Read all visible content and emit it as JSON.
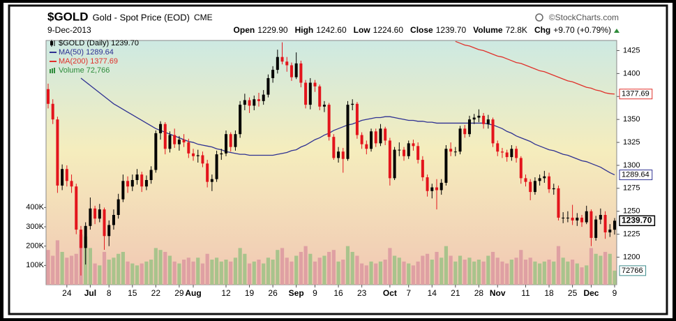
{
  "chart_data": {
    "type": "candlestick",
    "title": "$GOLD",
    "subtitle": "Gold - Spot Price (EOD)",
    "exchange": "CME",
    "source": "©StockCharts.com",
    "date": "9-Dec-2013",
    "quote": [
      {
        "label": "Open",
        "value": "1229.90"
      },
      {
        "label": "High",
        "value": "1242.60"
      },
      {
        "label": "Low",
        "value": "1224.60"
      },
      {
        "label": "Close",
        "value": "1239.70"
      },
      {
        "label": "Volume",
        "value": "72.8K"
      },
      {
        "label": "Chg",
        "value": "+9.70 (+0.79%)"
      }
    ],
    "legend": "top-left",
    "categories": [
      null,
      null,
      null,
      null,
      "24",
      null,
      null,
      null,
      null,
      "Jul",
      null,
      null,
      null,
      "8",
      null,
      null,
      null,
      null,
      "15",
      null,
      null,
      null,
      null,
      "22",
      null,
      null,
      null,
      null,
      "29",
      null,
      null,
      "Aug",
      null,
      null,
      null,
      null,
      null,
      null,
      "12",
      null,
      null,
      null,
      null,
      "19",
      null,
      null,
      null,
      null,
      "26",
      null,
      null,
      null,
      null,
      "Sep",
      null,
      null,
      null,
      "9",
      null,
      null,
      null,
      null,
      "16",
      null,
      null,
      null,
      null,
      "23",
      null,
      null,
      null,
      null,
      null,
      "Oct",
      null,
      null,
      null,
      "7",
      null,
      null,
      null,
      null,
      "14",
      null,
      null,
      null,
      null,
      "21",
      null,
      null,
      null,
      null,
      "28",
      null,
      null,
      null,
      "Nov",
      null,
      null,
      null,
      null,
      null,
      "11",
      null,
      null,
      null,
      null,
      "18",
      null,
      null,
      null,
      null,
      "25",
      null,
      null,
      null,
      "Dec",
      null,
      null,
      null,
      null,
      "9"
    ],
    "ylim": [
      1170,
      1436
    ],
    "yticks": [
      1200,
      1225,
      1250,
      1275,
      1300,
      1325,
      1350,
      1375,
      1400,
      1425
    ],
    "y2lim": [
      0,
      1265000
    ],
    "y2ticks": [
      {
        "value": 100000,
        "label": "100K"
      },
      {
        "value": 200000,
        "label": "200K"
      },
      {
        "value": 300000,
        "label": "300K"
      },
      {
        "value": 400000,
        "label": "400K"
      }
    ],
    "series": [
      {
        "name": "$GOLD (Daily) 1239.70",
        "type": "candlestick",
        "up_color": "#000000",
        "down_color": "#e3141c",
        "last_label": "1239.70",
        "open": [
          1383,
          1367,
          1350,
          1278,
          1296,
          1283,
          1277,
          1230,
          1210,
          1234,
          1253,
          1242,
          1252,
          1223,
          1235,
          1246,
          1263,
          1283,
          1277,
          1284,
          1290,
          1277,
          1284,
          1295,
          1335,
          1345,
          1318,
          1333,
          1323,
          1328,
          1325,
          1313,
          1310,
          1311,
          1302,
          1282,
          1285,
          1312,
          1313,
          1334,
          1320,
          1334,
          1366,
          1371,
          1365,
          1372,
          1370,
          1377,
          1395,
          1404,
          1418,
          1413,
          1409,
          1396,
          1411,
          1390,
          1366,
          1390,
          1386,
          1364,
          1366,
          1331,
          1308,
          1315,
          1307,
          1366,
          1367,
          1333,
          1323,
          1318,
          1337,
          1324,
          1340,
          1327,
          1286,
          1317,
          1317,
          1310,
          1324,
          1321,
          1306,
          1287,
          1272,
          1276,
          1273,
          1281,
          1318,
          1315,
          1315,
          1340,
          1334,
          1350,
          1352,
          1354,
          1345,
          1350,
          1324,
          1315,
          1314,
          1309,
          1318,
          1308,
          1286,
          1282,
          1271,
          1283,
          1286,
          1288,
          1274,
          1275,
          1243,
          1243,
          1243,
          1240,
          1243,
          1238,
          1250,
          1221,
          1241,
          1246,
          1227,
          1229.9
        ],
        "high": [
          1389,
          1372,
          1353,
          1301,
          1300,
          1290,
          1280,
          1234,
          1238,
          1265,
          1256,
          1258,
          1254,
          1240,
          1252,
          1269,
          1290,
          1288,
          1290,
          1296,
          1293,
          1289,
          1299,
          1338,
          1348,
          1347,
          1337,
          1340,
          1332,
          1334,
          1329,
          1318,
          1317,
          1315,
          1306,
          1290,
          1316,
          1318,
          1338,
          1336,
          1338,
          1370,
          1378,
          1374,
          1376,
          1379,
          1382,
          1399,
          1408,
          1426,
          1434,
          1418,
          1412,
          1423,
          1414,
          1393,
          1395,
          1393,
          1388,
          1370,
          1368,
          1334,
          1320,
          1319,
          1370,
          1372,
          1369,
          1336,
          1327,
          1340,
          1340,
          1345,
          1342,
          1330,
          1320,
          1325,
          1320,
          1327,
          1328,
          1325,
          1310,
          1290,
          1280,
          1285,
          1285,
          1322,
          1325,
          1320,
          1343,
          1344,
          1354,
          1356,
          1361,
          1357,
          1355,
          1352,
          1327,
          1319,
          1317,
          1322,
          1321,
          1310,
          1290,
          1285,
          1287,
          1290,
          1294,
          1292,
          1280,
          1278,
          1249,
          1250,
          1257,
          1248,
          1246,
          1256,
          1252,
          1245,
          1253,
          1250,
          1236,
          1242.6
        ],
        "low": [
          1362,
          1345,
          1270,
          1273,
          1277,
          1270,
          1225,
          1180,
          1192,
          1230,
          1236,
          1238,
          1208,
          1212,
          1230,
          1242,
          1260,
          1270,
          1272,
          1279,
          1271,
          1273,
          1280,
          1292,
          1328,
          1312,
          1314,
          1319,
          1316,
          1320,
          1308,
          1305,
          1303,
          1298,
          1276,
          1272,
          1282,
          1306,
          1310,
          1315,
          1316,
          1330,
          1360,
          1357,
          1360,
          1364,
          1366,
          1374,
          1390,
          1400,
          1410,
          1402,
          1392,
          1394,
          1385,
          1362,
          1361,
          1380,
          1360,
          1358,
          1327,
          1306,
          1303,
          1292,
          1305,
          1360,
          1329,
          1318,
          1312,
          1315,
          1320,
          1321,
          1322,
          1278,
          1284,
          1310,
          1305,
          1307,
          1316,
          1302,
          1283,
          1266,
          1264,
          1252,
          1268,
          1278,
          1310,
          1310,
          1312,
          1330,
          1331,
          1345,
          1347,
          1340,
          1340,
          1320,
          1310,
          1308,
          1304,
          1305,
          1303,
          1280,
          1277,
          1262,
          1268,
          1278,
          1281,
          1270,
          1268,
          1240,
          1237,
          1238,
          1235,
          1234,
          1233,
          1236,
          1212,
          1218,
          1236,
          1220,
          1222,
          1224.6
        ],
        "close": [
          1367,
          1350,
          1278,
          1296,
          1283,
          1277,
          1230,
          1210,
          1234,
          1253,
          1242,
          1252,
          1223,
          1235,
          1246,
          1263,
          1283,
          1277,
          1284,
          1290,
          1277,
          1284,
          1295,
          1335,
          1345,
          1318,
          1333,
          1323,
          1328,
          1325,
          1313,
          1310,
          1311,
          1302,
          1282,
          1285,
          1312,
          1313,
          1334,
          1320,
          1334,
          1366,
          1371,
          1365,
          1372,
          1370,
          1377,
          1395,
          1404,
          1418,
          1413,
          1409,
          1396,
          1411,
          1390,
          1366,
          1390,
          1386,
          1364,
          1366,
          1331,
          1308,
          1315,
          1307,
          1366,
          1367,
          1333,
          1323,
          1318,
          1337,
          1324,
          1340,
          1327,
          1286,
          1317,
          1317,
          1310,
          1324,
          1321,
          1306,
          1287,
          1272,
          1276,
          1273,
          1281,
          1318,
          1315,
          1315,
          1340,
          1334,
          1350,
          1352,
          1354,
          1345,
          1350,
          1324,
          1315,
          1314,
          1309,
          1318,
          1308,
          1286,
          1282,
          1271,
          1283,
          1286,
          1288,
          1274,
          1275,
          1243,
          1243,
          1243,
          1240,
          1243,
          1238,
          1250,
          1221,
          1241,
          1246,
          1227,
          1230,
          1239.7
        ]
      },
      {
        "name": "MA(50) 1289.64",
        "type": "line",
        "color": "#2e3192",
        "values": [
          null,
          null,
          null,
          null,
          null,
          null,
          null,
          1395,
          1391,
          1387,
          1383,
          1379,
          1375,
          1371,
          1367,
          1364,
          1361,
          1358,
          1355,
          1352,
          1349,
          1346,
          1343,
          1340,
          1338,
          1336,
          1334,
          1332,
          1330,
          1328,
          1326,
          1325,
          1323,
          1322,
          1321,
          1320,
          1318,
          1317,
          1315,
          1314,
          1313,
          1312,
          1312,
          1311,
          1311,
          1311,
          1311,
          1311,
          1311,
          1312,
          1313,
          1314,
          1316,
          1317,
          1320,
          1322,
          1325,
          1328,
          1330,
          1333,
          1335,
          1338,
          1340,
          1342,
          1344,
          1345,
          1347,
          1349,
          1350,
          1351,
          1352,
          1352,
          1353,
          1353,
          1352,
          1351,
          1350,
          1349,
          1349,
          1348,
          1348,
          1347,
          1347,
          1346,
          1346,
          1346,
          1346,
          1346,
          1346,
          1346,
          1346,
          1346,
          1346,
          1346,
          1345,
          1344,
          1342,
          1340,
          1337,
          1335,
          1332,
          1330,
          1328,
          1326,
          1323,
          1321,
          1319,
          1317,
          1316,
          1314,
          1312,
          1311,
          1309,
          1307,
          1305,
          1304,
          1302,
          1300,
          1298,
          1295,
          1292,
          1289.64
        ]
      },
      {
        "name": "MA(200) 1377.69",
        "type": "line",
        "color": "#e0302a",
        "values": [
          null,
          null,
          null,
          null,
          null,
          null,
          null,
          null,
          null,
          null,
          null,
          null,
          null,
          null,
          null,
          null,
          null,
          null,
          null,
          null,
          null,
          null,
          null,
          null,
          null,
          null,
          null,
          null,
          null,
          null,
          null,
          null,
          null,
          null,
          null,
          null,
          null,
          null,
          null,
          null,
          null,
          null,
          null,
          null,
          null,
          null,
          null,
          null,
          null,
          null,
          null,
          null,
          null,
          null,
          null,
          null,
          null,
          null,
          null,
          null,
          null,
          null,
          null,
          null,
          null,
          null,
          null,
          null,
          null,
          null,
          null,
          null,
          null,
          null,
          null,
          null,
          null,
          null,
          null,
          null,
          null,
          null,
          null,
          null,
          null,
          null,
          null,
          1435,
          1433,
          1431,
          1430,
          1428,
          1426,
          1425,
          1423,
          1421,
          1419,
          1418,
          1416,
          1414,
          1412,
          1411,
          1409,
          1407,
          1405,
          1403,
          1402,
          1400,
          1398,
          1396,
          1394,
          1392,
          1391,
          1389,
          1387,
          1385,
          1384,
          1382,
          1381,
          1379,
          1378,
          1377.69
        ]
      },
      {
        "name": "Volume 72,766",
        "type": "bar",
        "axis": "y2",
        "color": "#2e8b3a",
        "up_color": "#a9c38c",
        "down_color": "#dfa0a3",
        "values": [
          180000,
          150000,
          230000,
          170000,
          140000,
          150000,
          160000,
          260000,
          250000,
          190000,
          110000,
          100000,
          170000,
          130000,
          140000,
          160000,
          170000,
          120000,
          110000,
          100000,
          110000,
          120000,
          130000,
          190000,
          180000,
          170000,
          150000,
          120000,
          110000,
          130000,
          140000,
          120000,
          140000,
          110000,
          160000,
          130000,
          140000,
          120000,
          130000,
          120000,
          140000,
          190000,
          160000,
          110000,
          120000,
          130000,
          110000,
          140000,
          130000,
          180000,
          190000,
          140000,
          120000,
          150000,
          170000,
          200000,
          160000,
          120000,
          140000,
          150000,
          170000,
          180000,
          120000,
          130000,
          200000,
          170000,
          150000,
          110000,
          100000,
          120000,
          110000,
          120000,
          130000,
          190000,
          150000,
          140000,
          120000,
          110000,
          100000,
          120000,
          150000,
          160000,
          130000,
          170000,
          140000,
          200000,
          150000,
          120000,
          150000,
          130000,
          140000,
          120000,
          130000,
          120000,
          150000,
          170000,
          140000,
          120000,
          110000,
          130000,
          140000,
          180000,
          130000,
          140000,
          120000,
          110000,
          120000,
          130000,
          120000,
          200000,
          140000,
          120000,
          130000,
          110000,
          90000,
          100000,
          190000,
          160000,
          150000,
          170000,
          160000,
          72766
        ]
      }
    ]
  }
}
